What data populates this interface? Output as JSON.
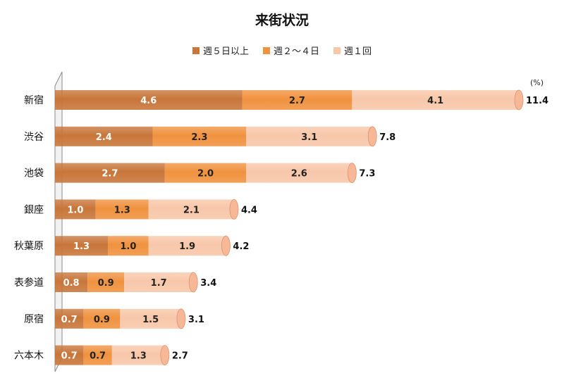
{
  "chart_data": {
    "type": "bar",
    "orientation": "horizontal",
    "stacked": true,
    "title": "来街状況",
    "unit": "(%)",
    "legend_position": "top",
    "categories": [
      "新宿",
      "渋谷",
      "池袋",
      "銀座",
      "秋葉原",
      "表参道",
      "原宿",
      "六本木"
    ],
    "series": [
      {
        "name": "週５日以上",
        "color": "#c8763a",
        "values": [
          4.6,
          2.4,
          2.7,
          1.0,
          1.3,
          0.8,
          0.7,
          0.7
        ]
      },
      {
        "name": "週２～４日",
        "color": "#f0923f",
        "values": [
          2.7,
          2.3,
          2.0,
          1.3,
          1.0,
          0.9,
          0.9,
          0.7
        ]
      },
      {
        "name": "週１回",
        "color": "#f8c7a9",
        "values": [
          4.1,
          3.1,
          2.6,
          2.1,
          1.9,
          1.7,
          1.5,
          1.3
        ]
      }
    ],
    "totals": [
      "11.4",
      "7.8",
      "7.3",
      "4.4",
      "4.2",
      "3.4",
      "3.1",
      "2.7"
    ],
    "xlim": [
      0,
      11.4
    ],
    "grid": false
  }
}
